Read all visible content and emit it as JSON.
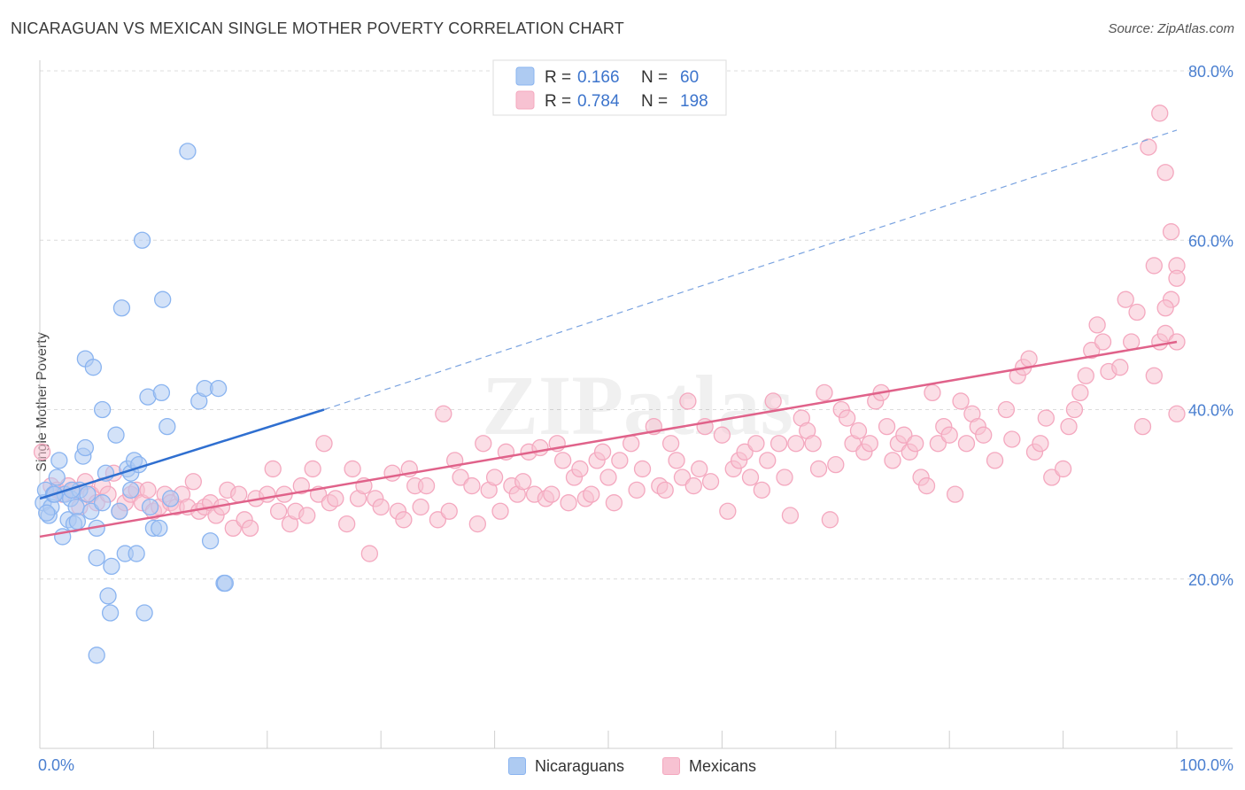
{
  "title": "NICARAGUAN VS MEXICAN SINGLE MOTHER POVERTY CORRELATION CHART",
  "source": "Source: ZipAtlas.com",
  "watermark": "ZIPatlas",
  "chart_data": {
    "type": "scatter",
    "xlabel": "",
    "ylabel": "Single Mother Poverty",
    "xlim": [
      0,
      100
    ],
    "ylim": [
      0,
      80
    ],
    "x_tick_labels": [
      "0.0%",
      "100.0%"
    ],
    "y_ticks": [
      20,
      40,
      60,
      80
    ],
    "y_tick_labels": [
      "20.0%",
      "40.0%",
      "60.0%",
      "80.0%"
    ],
    "legend_stats": [
      {
        "r_label": "R =",
        "r_value": "0.166",
        "n_label": "N =",
        "n_value": "60"
      },
      {
        "r_label": "R =",
        "r_value": "0.784",
        "n_label": "N =",
        "n_value": "198"
      }
    ],
    "series": [
      {
        "name": "Nicaraguans",
        "color": "#8ab4f0",
        "fill": "#aecbf2",
        "line_color": "#2f6fd0",
        "trend": {
          "x0": 0,
          "y0": 29.5,
          "x1": 25,
          "y1": 40,
          "dash_x1": 100,
          "dash_y1": 73
        },
        "points": [
          [
            0.3,
            29
          ],
          [
            0.5,
            30.5
          ],
          [
            0.8,
            27.5
          ],
          [
            1,
            28.5
          ],
          [
            1.2,
            30
          ],
          [
            1.5,
            32
          ],
          [
            1.7,
            34
          ],
          [
            2,
            25
          ],
          [
            2.2,
            30
          ],
          [
            2.5,
            27
          ],
          [
            2.7,
            29.5
          ],
          [
            3,
            26.5
          ],
          [
            3.2,
            28.5
          ],
          [
            3.5,
            30.5
          ],
          [
            3.8,
            34.5
          ],
          [
            4,
            46
          ],
          [
            4,
            35.5
          ],
          [
            4.5,
            28
          ],
          [
            4.7,
            45
          ],
          [
            5,
            26
          ],
          [
            5,
            22.5
          ],
          [
            5.5,
            29
          ],
          [
            5.5,
            40
          ],
          [
            5.8,
            32.5
          ],
          [
            6,
            18
          ],
          [
            6.2,
            16
          ],
          [
            6.3,
            21.5
          ],
          [
            6.7,
            37
          ],
          [
            7,
            28
          ],
          [
            7.2,
            52
          ],
          [
            7.5,
            23
          ],
          [
            7.7,
            33
          ],
          [
            8,
            32.5
          ],
          [
            8,
            30.5
          ],
          [
            8.3,
            34
          ],
          [
            8.5,
            23
          ],
          [
            8.7,
            33.5
          ],
          [
            9,
            60
          ],
          [
            9.2,
            16
          ],
          [
            9.5,
            41.5
          ],
          [
            9.7,
            28.5
          ],
          [
            10,
            26
          ],
          [
            10.5,
            26
          ],
          [
            10.7,
            42
          ],
          [
            10.8,
            53
          ],
          [
            11.2,
            38
          ],
          [
            11.5,
            29.5
          ],
          [
            13,
            70.5
          ],
          [
            14,
            41
          ],
          [
            14.5,
            42.5
          ],
          [
            15,
            24.5
          ],
          [
            15.7,
            42.5
          ],
          [
            16.2,
            19.5
          ],
          [
            16.3,
            19.5
          ],
          [
            5,
            11
          ],
          [
            1.3,
            30
          ],
          [
            2.8,
            30.5
          ],
          [
            4.2,
            30
          ],
          [
            0.6,
            27.8
          ],
          [
            3.3,
            26.8
          ]
        ]
      },
      {
        "name": "Mexicans",
        "color": "#f4a8bf",
        "fill": "#f7c2d2",
        "line_color": "#e0628a",
        "trend": {
          "x0": 0,
          "y0": 25,
          "x1": 100,
          "y1": 48
        },
        "points": [
          [
            0.2,
            35
          ],
          [
            1,
            31
          ],
          [
            1.5,
            30.5
          ],
          [
            2,
            30
          ],
          [
            2.5,
            31
          ],
          [
            3,
            30.5
          ],
          [
            3.5,
            28.5
          ],
          [
            4,
            31.5
          ],
          [
            4.5,
            30
          ],
          [
            5,
            29
          ],
          [
            5.5,
            31
          ],
          [
            6,
            30
          ],
          [
            6.5,
            32.5
          ],
          [
            7,
            28
          ],
          [
            7.5,
            29
          ],
          [
            8,
            30
          ],
          [
            8.5,
            30.5
          ],
          [
            9,
            29
          ],
          [
            9.5,
            30.5
          ],
          [
            10,
            28
          ],
          [
            10.5,
            28.5
          ],
          [
            11,
            30
          ],
          [
            11.5,
            29
          ],
          [
            12,
            28.5
          ],
          [
            12.5,
            30
          ],
          [
            13,
            28.5
          ],
          [
            13.5,
            31.5
          ],
          [
            14,
            28
          ],
          [
            14.5,
            28.5
          ],
          [
            15,
            29
          ],
          [
            15.5,
            27.5
          ],
          [
            16,
            28.5
          ],
          [
            16.5,
            30.5
          ],
          [
            17,
            26
          ],
          [
            17.5,
            30
          ],
          [
            18,
            27
          ],
          [
            18.5,
            26
          ],
          [
            19,
            29.5
          ],
          [
            20,
            30
          ],
          [
            20.5,
            33
          ],
          [
            21,
            28
          ],
          [
            21.5,
            30
          ],
          [
            22,
            26.5
          ],
          [
            22.5,
            28
          ],
          [
            23,
            31
          ],
          [
            23.5,
            27.5
          ],
          [
            24,
            33
          ],
          [
            24.5,
            30
          ],
          [
            25,
            36
          ],
          [
            25.5,
            29
          ],
          [
            26,
            29.5
          ],
          [
            27,
            26.5
          ],
          [
            27.5,
            33
          ],
          [
            28,
            29.5
          ],
          [
            28.5,
            31
          ],
          [
            29,
            23
          ],
          [
            29.5,
            29.5
          ],
          [
            30,
            28.5
          ],
          [
            31,
            32.5
          ],
          [
            31.5,
            28
          ],
          [
            32,
            27
          ],
          [
            32.5,
            33
          ],
          [
            33,
            31
          ],
          [
            33.5,
            28.5
          ],
          [
            34,
            31
          ],
          [
            35,
            27
          ],
          [
            35.5,
            39.5
          ],
          [
            36,
            28
          ],
          [
            36.5,
            34
          ],
          [
            37,
            32
          ],
          [
            38,
            31
          ],
          [
            38.5,
            26.5
          ],
          [
            39,
            36
          ],
          [
            39.5,
            30.5
          ],
          [
            40,
            32
          ],
          [
            40.5,
            28
          ],
          [
            41,
            35
          ],
          [
            41.5,
            31
          ],
          [
            42,
            30
          ],
          [
            42.5,
            31.5
          ],
          [
            43,
            35
          ],
          [
            43.5,
            30
          ],
          [
            44,
            35.5
          ],
          [
            44.5,
            29.5
          ],
          [
            45,
            30
          ],
          [
            45.5,
            36
          ],
          [
            46,
            34
          ],
          [
            46.5,
            29
          ],
          [
            47,
            32
          ],
          [
            47.5,
            33
          ],
          [
            48,
            29.5
          ],
          [
            48.5,
            30
          ],
          [
            49,
            34
          ],
          [
            49.5,
            35
          ],
          [
            50,
            32
          ],
          [
            50.5,
            29
          ],
          [
            51,
            34
          ],
          [
            52,
            36
          ],
          [
            52.5,
            30.5
          ],
          [
            53,
            33
          ],
          [
            54,
            38
          ],
          [
            54.5,
            31
          ],
          [
            55,
            30.5
          ],
          [
            55.5,
            36
          ],
          [
            56,
            34
          ],
          [
            56.5,
            32
          ],
          [
            57,
            41
          ],
          [
            57.5,
            31
          ],
          [
            58,
            33
          ],
          [
            58.5,
            38
          ],
          [
            59,
            31.5
          ],
          [
            60,
            37
          ],
          [
            60.5,
            28
          ],
          [
            61,
            33
          ],
          [
            61.5,
            34
          ],
          [
            62,
            35
          ],
          [
            62.5,
            32
          ],
          [
            63,
            36
          ],
          [
            63.5,
            30.5
          ],
          [
            64,
            34
          ],
          [
            64.5,
            41
          ],
          [
            65,
            36
          ],
          [
            65.5,
            32
          ],
          [
            66,
            27.5
          ],
          [
            66.5,
            36
          ],
          [
            67,
            39
          ],
          [
            67.5,
            37.5
          ],
          [
            68,
            36
          ],
          [
            68.5,
            33
          ],
          [
            69,
            42
          ],
          [
            69.5,
            27
          ],
          [
            70,
            33.5
          ],
          [
            70.5,
            40
          ],
          [
            71,
            39
          ],
          [
            71.5,
            36
          ],
          [
            72,
            37.5
          ],
          [
            72.5,
            35
          ],
          [
            73,
            36
          ],
          [
            73.5,
            41
          ],
          [
            74,
            42
          ],
          [
            74.5,
            38
          ],
          [
            75,
            34
          ],
          [
            75.5,
            36
          ],
          [
            76,
            37
          ],
          [
            76.5,
            35
          ],
          [
            77,
            36
          ],
          [
            77.5,
            32
          ],
          [
            78,
            31
          ],
          [
            78.5,
            42
          ],
          [
            79,
            36
          ],
          [
            79.5,
            38
          ],
          [
            80,
            37
          ],
          [
            80.5,
            30
          ],
          [
            81,
            41
          ],
          [
            81.5,
            36
          ],
          [
            82,
            39.5
          ],
          [
            82.5,
            38
          ],
          [
            83,
            37
          ],
          [
            84,
            34
          ],
          [
            85,
            40
          ],
          [
            85.5,
            36.5
          ],
          [
            86,
            44
          ],
          [
            86.5,
            45
          ],
          [
            87,
            46
          ],
          [
            87.5,
            35
          ],
          [
            88,
            36
          ],
          [
            88.5,
            39
          ],
          [
            89,
            32
          ],
          [
            90,
            33
          ],
          [
            90.5,
            38
          ],
          [
            91,
            40
          ],
          [
            91.5,
            42
          ],
          [
            92,
            44
          ],
          [
            92.5,
            47
          ],
          [
            93,
            50
          ],
          [
            93.5,
            48
          ],
          [
            94,
            44.5
          ],
          [
            95,
            45
          ],
          [
            95.5,
            53
          ],
          [
            96,
            48
          ],
          [
            96.5,
            51.5
          ],
          [
            97,
            38
          ],
          [
            98,
            44
          ],
          [
            98.5,
            48
          ],
          [
            99,
            49
          ],
          [
            99.5,
            53
          ],
          [
            100,
            48
          ],
          [
            97.5,
            71
          ],
          [
            99,
            52
          ],
          [
            100,
            57
          ],
          [
            98,
            57
          ],
          [
            99.5,
            61
          ],
          [
            100,
            55.5
          ],
          [
            99,
            68
          ],
          [
            98.5,
            75
          ],
          [
            100,
            39.5
          ]
        ]
      }
    ]
  }
}
